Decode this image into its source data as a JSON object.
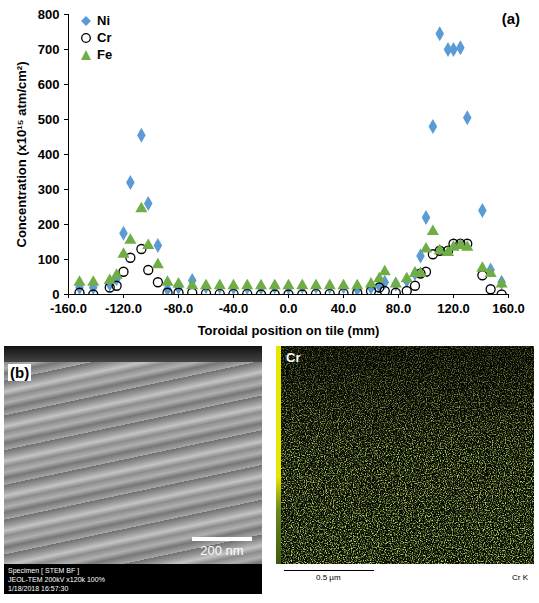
{
  "chart_data": {
    "type": "scatter",
    "x_label": "Toroidal position on tile (mm)",
    "y_label": "Concentration (x10¹⁵ atm/cm²)",
    "annotations": [
      "(a)"
    ],
    "legend": "top-left",
    "grid": false,
    "xlim": [
      -160,
      160
    ],
    "xticks": [
      {
        "value": -160,
        "label": "-160.0"
      },
      {
        "value": -120,
        "label": "-120.0"
      },
      {
        "value": -80,
        "label": "-80.0"
      },
      {
        "value": -40,
        "label": "-40.0"
      },
      {
        "value": 0,
        "label": "0.0"
      },
      {
        "value": 40,
        "label": "40.0"
      },
      {
        "value": 80,
        "label": "80.0"
      },
      {
        "value": 120,
        "label": "120.0"
      },
      {
        "value": 160,
        "label": "160.0"
      }
    ],
    "ylim": [
      0,
      800
    ],
    "yticks": [
      0,
      100,
      200,
      300,
      400,
      500,
      600,
      700,
      800
    ],
    "x": [
      -152,
      -142,
      -130,
      -125,
      -120,
      -115,
      -107,
      -102,
      -95,
      -88,
      -80,
      -70,
      -60,
      -50,
      -40,
      -30,
      -20,
      -10,
      0,
      10,
      20,
      30,
      40,
      50,
      60,
      66,
      70,
      78,
      86,
      92,
      96,
      100,
      105,
      110,
      116,
      120,
      125,
      130,
      135,
      141,
      147,
      155
    ],
    "series": [
      {
        "name": "Ni",
        "color": "#5b9bd5",
        "marker": "diamond",
        "values": [
          20,
          20,
          30,
          45,
          175,
          320,
          455,
          260,
          140,
          15,
          20,
          40,
          22,
          22,
          20,
          20,
          20,
          22,
          20,
          22,
          22,
          22,
          22,
          15,
          20,
          25,
          35,
          30,
          40,
          60,
          110,
          220,
          480,
          745,
          700,
          700,
          705,
          505,
          null,
          240,
          70,
          35
        ]
      },
      {
        "name": "Cr",
        "color": "#000000",
        "marker": "open_circle",
        "values": [
          5,
          0,
          20,
          25,
          65,
          105,
          130,
          70,
          35,
          5,
          5,
          5,
          3,
          2,
          2,
          2,
          0,
          0,
          0,
          0,
          2,
          2,
          3,
          5,
          10,
          20,
          10,
          5,
          10,
          25,
          60,
          65,
          115,
          125,
          125,
          145,
          145,
          145,
          null,
          55,
          15,
          0
        ]
      },
      {
        "name": "Fe",
        "color": "#70ad47",
        "marker": "triangle",
        "values": [
          35,
          35,
          40,
          55,
          115,
          155,
          245,
          140,
          85,
          35,
          30,
          25,
          25,
          25,
          25,
          25,
          25,
          25,
          25,
          25,
          25,
          25,
          25,
          25,
          30,
          45,
          65,
          30,
          45,
          60,
          60,
          130,
          180,
          125,
          120,
          135,
          140,
          135,
          null,
          75,
          60,
          30
        ]
      }
    ]
  },
  "panel_b": {
    "label": "(b)",
    "stem_image": {
      "scale_bar": "200 nm",
      "footer": [
        "Specimen [ STEM BF ]",
        "JEOL-TEM 200kV x120k 100%",
        "1/18/2018 16:57:30"
      ]
    },
    "eds_map": {
      "element": "Cr",
      "scale_bar": "0.5 µm",
      "signal": "Cr K"
    }
  }
}
